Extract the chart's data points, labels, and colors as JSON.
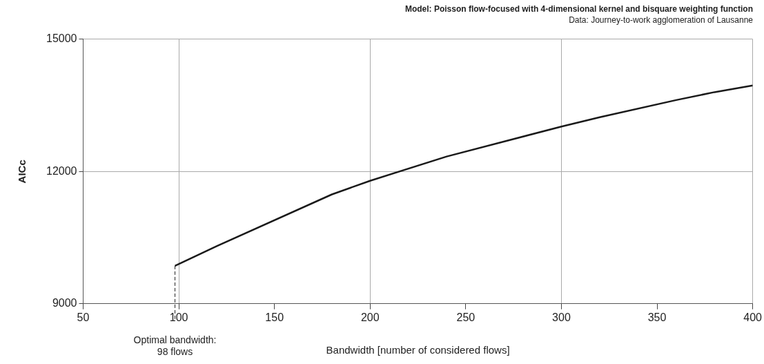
{
  "chart_data": {
    "type": "line",
    "title": "Model: Poisson flow-focused with 4-dimensional kernel and bisquare weighting function",
    "subtitle": "Data: Journey-to-work agglomeration of Lausanne",
    "xlabel": "Bandwidth [number of considered flows]",
    "ylabel": "AICc",
    "series": [
      {
        "color": "#1a1a1a",
        "x": [
          98,
          120,
          180,
          200,
          240,
          300,
          320,
          360,
          380,
          400
        ],
        "values": [
          9860,
          10310,
          11480,
          11790,
          12340,
          13020,
          13230,
          13620,
          13800,
          13950
        ]
      }
    ],
    "xlim": [
      50,
      400
    ],
    "xticks": [
      50,
      100,
      150,
      200,
      250,
      300,
      350,
      400
    ],
    "ylim": [
      9000,
      15000
    ],
    "yticks": [
      9000,
      12000,
      15000
    ],
    "ref_lines": [
      {
        "axis": "x",
        "value": 98,
        "label": "Optimal bandwidth:\n98 flows",
        "line_style": "dashed"
      }
    ],
    "grid": true,
    "marker": "none",
    "line_style": "solid"
  }
}
